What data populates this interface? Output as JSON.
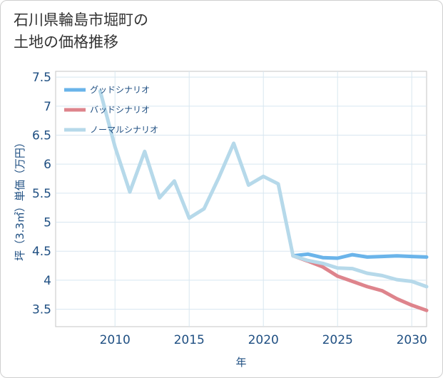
{
  "header": {
    "title_line1": "石川県輪島市堀町の",
    "title_line2": "土地の価格推移"
  },
  "chart_data": {
    "type": "line",
    "title": "石川県輪島市堀町の土地の価格推移",
    "xlabel": "年",
    "ylabel": "坪（3.3㎡）単価（万円）",
    "xlim": [
      2006,
      2031
    ],
    "ylim": [
      3.2,
      7.6
    ],
    "x_ticks": [
      2010,
      2015,
      2020,
      2025,
      2030
    ],
    "x_tick_labels": [
      "2010",
      "2015",
      "2020",
      "2025",
      "2030"
    ],
    "y_ticks": [
      3.5,
      4,
      4.5,
      5,
      5.5,
      6,
      6.5,
      7,
      7.5
    ],
    "y_tick_labels": [
      "3.5",
      "4",
      "4.5",
      "5",
      "5.5",
      "6",
      "6.5",
      "7",
      "7.5"
    ],
    "grid": true,
    "legend_position": "top-left",
    "series": [
      {
        "name": "グッドシナリオ",
        "color": "#6ab4ea",
        "x": [
          2022,
          2023,
          2024,
          2025,
          2026,
          2027,
          2028,
          2029,
          2030,
          2031
        ],
        "values": [
          4.42,
          4.45,
          4.39,
          4.38,
          4.44,
          4.4,
          4.41,
          4.42,
          4.41,
          4.4
        ]
      },
      {
        "name": "バッドシナリオ",
        "color": "#de848c",
        "x": [
          2022,
          2023,
          2024,
          2025,
          2026,
          2027,
          2028,
          2029,
          2030,
          2031
        ],
        "values": [
          4.42,
          4.33,
          4.23,
          4.07,
          3.98,
          3.89,
          3.82,
          3.68,
          3.57,
          3.48
        ]
      },
      {
        "name": "ノーマルシナリオ",
        "color": "#b6d9ea",
        "x": [
          2009,
          2010,
          2011,
          2012,
          2013,
          2014,
          2015,
          2016,
          2017,
          2018,
          2019,
          2020,
          2021,
          2022,
          2023,
          2024,
          2025,
          2026,
          2027,
          2028,
          2029,
          2030,
          2031
        ],
        "values": [
          7.26,
          6.3,
          5.52,
          6.22,
          5.42,
          5.71,
          5.07,
          5.23,
          5.77,
          6.36,
          5.64,
          5.79,
          5.66,
          4.42,
          4.34,
          4.29,
          4.21,
          4.2,
          4.12,
          4.08,
          4.01,
          3.98,
          3.89
        ]
      }
    ]
  }
}
